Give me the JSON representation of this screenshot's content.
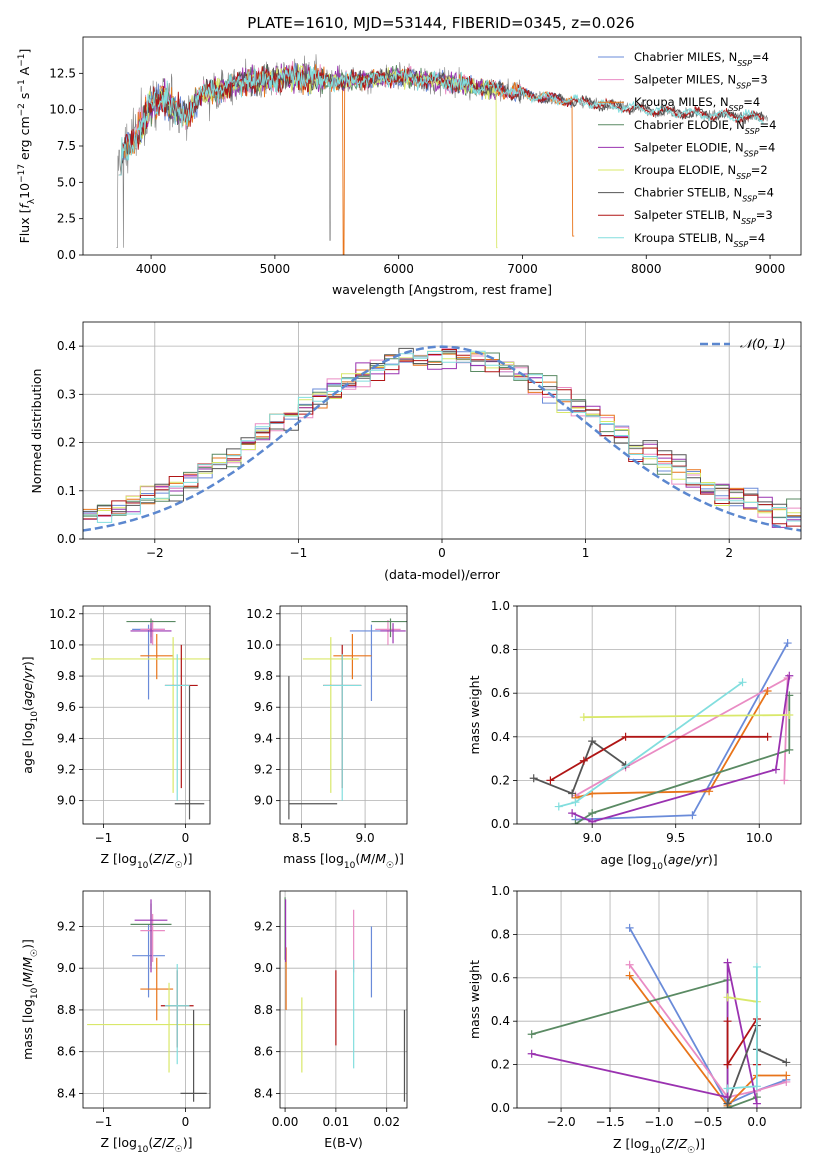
{
  "figure_title": "PLATE=1610, MJD=53144, FIBERID=0345, z=0.026",
  "colors": {
    "chabrier_miles": "#6a8bd9",
    "salpeter_miles": "#e98cc4",
    "kroupa_miles": "#e8741a",
    "chabrier_elodie": "#5a8a63",
    "salpeter_elodie": "#9a32b0",
    "kroupa_elodie": "#d9e86a",
    "chabrier_stelib": "#555555",
    "salpeter_stelib": "#b01515",
    "kroupa_stelib": "#82dede",
    "data": "#808080",
    "normal": "#5b87cf"
  },
  "chart_data": [
    {
      "id": "spectrum",
      "type": "line",
      "xlabel": "wavelength [Angstrom, rest frame]",
      "ylabel": "Flux [f_λ10^-17 erg cm^-2 s^-1 A^-1]",
      "xlim": [
        3450,
        9250
      ],
      "ylim": [
        0,
        15
      ],
      "xticks": [
        4000,
        5000,
        6000,
        7000,
        8000,
        9000
      ],
      "yticks": [
        0.0,
        2.5,
        5.0,
        7.5,
        10.0,
        12.5
      ],
      "ytick_labels": [
        "0.0",
        "2.5",
        "5.0",
        "7.5",
        "10.0",
        "12.5"
      ],
      "legend_position": "upper-right",
      "legend": [
        {
          "key": "chabrier_miles",
          "label": "Chabrier MILES, N",
          "sub": "SSP",
          "tail": "=4"
        },
        {
          "key": "salpeter_miles",
          "label": "Salpeter MILES, N",
          "sub": "SSP",
          "tail": "=3"
        },
        {
          "key": "kroupa_miles",
          "label": "Kroupa MILES, N",
          "sub": "SSP",
          "tail": "=4"
        },
        {
          "key": "chabrier_elodie",
          "label": "Chabrier ELODIE, N",
          "sub": "SSP",
          "tail": "=4"
        },
        {
          "key": "salpeter_elodie",
          "label": "Salpeter ELODIE, N",
          "sub": "SSP",
          "tail": "=4"
        },
        {
          "key": "kroupa_elodie",
          "label": "Kroupa ELODIE, N",
          "sub": "SSP",
          "tail": "=2"
        },
        {
          "key": "chabrier_stelib",
          "label": "Chabrier STELIB, N",
          "sub": "SSP",
          "tail": "=4"
        },
        {
          "key": "salpeter_stelib",
          "label": "Salpeter STELIB, N",
          "sub": "SSP",
          "tail": "=3"
        },
        {
          "key": "kroupa_stelib",
          "label": "Kroupa STELIB, N",
          "sub": "SSP",
          "tail": "=4"
        }
      ],
      "continuum": {
        "x": [
          3720,
          3800,
          3900,
          4000,
          4100,
          4200,
          4300,
          4400,
          4600,
          4800,
          5000,
          5200,
          5500,
          5800,
          6000,
          6300,
          6600,
          6800,
          7000,
          7200,
          7500,
          7800,
          8000,
          8300,
          8600,
          8900,
          9000
        ],
        "y": [
          6.5,
          7.5,
          8.6,
          10.3,
          10.8,
          10.0,
          9.6,
          11.0,
          11.5,
          12.0,
          12.1,
          12.2,
          12.0,
          12.1,
          12.3,
          12.0,
          11.6,
          11.4,
          11.1,
          10.8,
          10.5,
          10.2,
          10.0,
          9.8,
          9.6,
          9.5,
          9.4
        ]
      }
    },
    {
      "id": "residuals",
      "type": "histogram",
      "xlabel": "(data-model)/error",
      "ylabel": "Normed distribution",
      "xlim": [
        -2.5,
        2.5
      ],
      "ylim": [
        0,
        0.45
      ],
      "xticks": [
        -2,
        -1,
        0,
        1,
        2
      ],
      "yticks": [
        0.0,
        0.1,
        0.2,
        0.3,
        0.4
      ],
      "legend": {
        "label": "𝒩(0, 1)",
        "position": "upper-right"
      },
      "bins": 50
    },
    {
      "id": "age_vs_metallicity",
      "type": "errorbar",
      "xlabel": "Z [log10(Z/Z☉)]",
      "ylabel": "age [log10(age/yr)]",
      "xlim": [
        -1.25,
        0.3
      ],
      "ylim": [
        8.85,
        10.25
      ],
      "xticks": [
        -1,
        0
      ],
      "yticks": [
        9.0,
        9.2,
        9.4,
        9.6,
        9.8,
        10.0,
        10.2
      ],
      "points": [
        {
          "key": "chabrier_miles",
          "x": -0.45,
          "y": 10.1,
          "xerr": 0.2,
          "yerr": [
            0.45,
            0.03
          ]
        },
        {
          "key": "salpeter_miles",
          "x": -0.4,
          "y": 10.1,
          "xerr": 0.15,
          "yerr": [
            0.1,
            0.06
          ]
        },
        {
          "key": "kroupa_miles",
          "x": -0.35,
          "y": 9.93,
          "xerr": 0.2,
          "yerr": [
            0.15,
            0.14
          ]
        },
        {
          "key": "chabrier_elodie",
          "x": -0.42,
          "y": 10.15,
          "xerr": 0.3,
          "yerr": [
            0.1,
            0.02
          ]
        },
        {
          "key": "salpeter_elodie",
          "x": -0.42,
          "y": 10.09,
          "xerr": 0.25,
          "yerr": [
            0.08,
            0.05
          ]
        },
        {
          "key": "kroupa_elodie",
          "x": -0.15,
          "y": 9.91,
          "xerr": 1.0,
          "yerr": [
            0.86,
            0.14
          ]
        },
        {
          "key": "chabrier_stelib",
          "x": 0.05,
          "y": 8.98,
          "xerr": 0.18,
          "yerr": [
            0.1,
            0.76
          ]
        },
        {
          "key": "salpeter_stelib",
          "x": -0.05,
          "y": 9.74,
          "xerr": 0.2,
          "yerr": [
            0.66,
            0.26
          ]
        },
        {
          "key": "kroupa_stelib",
          "x": -0.1,
          "y": 9.74,
          "xerr": 0.15,
          "yerr": [
            0.74,
            0.2
          ]
        }
      ]
    },
    {
      "id": "age_vs_mass",
      "type": "errorbar",
      "xlabel": "mass [log10(M/M☉)]",
      "ylabel": "",
      "xlim": [
        8.33,
        9.33
      ],
      "ylim": [
        8.85,
        10.25
      ],
      "xticks": [
        8.5,
        9.0
      ],
      "yticks": [
        9.0,
        9.2,
        9.4,
        9.6,
        9.8,
        10.0,
        10.2
      ],
      "points": [
        {
          "key": "chabrier_miles",
          "x": 9.05,
          "y": 10.09,
          "xerr": 0.17,
          "yerr": [
            0.45,
            0.04
          ]
        },
        {
          "key": "salpeter_miles",
          "x": 9.18,
          "y": 10.1,
          "xerr": 0.1,
          "yerr": [
            0.1,
            0.06
          ]
        },
        {
          "key": "kroupa_miles",
          "x": 8.9,
          "y": 9.93,
          "xerr": 0.15,
          "yerr": [
            0.15,
            0.14
          ]
        },
        {
          "key": "chabrier_elodie",
          "x": 9.2,
          "y": 10.15,
          "xerr": 0.15,
          "yerr": [
            0.1,
            0.02
          ]
        },
        {
          "key": "salpeter_elodie",
          "x": 9.22,
          "y": 10.09,
          "xerr": 0.1,
          "yerr": [
            0.08,
            0.05
          ]
        },
        {
          "key": "kroupa_elodie",
          "x": 8.73,
          "y": 9.91,
          "xerr": 0.22,
          "yerr": [
            0.86,
            0.14
          ]
        },
        {
          "key": "chabrier_stelib",
          "x": 8.4,
          "y": 8.98,
          "xerr": [
            0.0,
            0.38
          ],
          "yerr": [
            0.1,
            0.82
          ]
        },
        {
          "key": "salpeter_stelib",
          "x": 8.82,
          "y": 9.74,
          "xerr": 0.15,
          "yerr": [
            0.66,
            0.26
          ]
        },
        {
          "key": "kroupa_stelib",
          "x": 8.82,
          "y": 9.74,
          "xerr": 0.15,
          "yerr": [
            0.74,
            0.2
          ]
        }
      ]
    },
    {
      "id": "weight_vs_age",
      "type": "line",
      "xlabel": "age [log10(age/yr)]",
      "ylabel": "mass weight",
      "xlim": [
        8.55,
        10.25
      ],
      "ylim": [
        0,
        1
      ],
      "xticks": [
        9.0,
        9.5,
        10.0
      ],
      "yticks": [
        0.0,
        0.2,
        0.4,
        0.6,
        0.8,
        1.0
      ],
      "series": [
        {
          "key": "chabrier_miles",
          "x": [
            8.9,
            9.6,
            10.17
          ],
          "y": [
            0.02,
            0.04,
            0.83
          ]
        },
        {
          "key": "salpeter_miles",
          "x": [
            8.9,
            9.2,
            10.17,
            10.15
          ],
          "y": [
            0.13,
            0.26,
            0.67,
            0.2
          ]
        },
        {
          "key": "kroupa_miles",
          "x": [
            8.9,
            9.0,
            9.7,
            10.05
          ],
          "y": [
            0.12,
            0.14,
            0.15,
            0.61
          ]
        },
        {
          "key": "chabrier_elodie",
          "x": [
            8.9,
            9.0,
            10.18,
            10.18
          ],
          "y": [
            0.0,
            0.05,
            0.34,
            0.59
          ]
        },
        {
          "key": "salpeter_elodie",
          "x": [
            8.88,
            9.0,
            10.1,
            10.18
          ],
          "y": [
            0.05,
            0.01,
            0.25,
            0.68
          ]
        },
        {
          "key": "kroupa_elodie",
          "x": [
            8.95,
            10.18
          ],
          "y": [
            0.49,
            0.5
          ]
        },
        {
          "key": "chabrier_stelib",
          "x": [
            8.65,
            8.88,
            9.0,
            9.2
          ],
          "y": [
            0.21,
            0.14,
            0.38,
            0.27
          ]
        },
        {
          "key": "salpeter_stelib",
          "x": [
            8.75,
            8.95,
            9.2,
            10.05
          ],
          "y": [
            0.2,
            0.29,
            0.4,
            0.4
          ]
        },
        {
          "key": "kroupa_stelib",
          "x": [
            8.8,
            8.9,
            9.9
          ],
          "y": [
            0.08,
            0.1,
            0.65
          ]
        }
      ]
    },
    {
      "id": "mass_vs_metallicity",
      "type": "errorbar",
      "xlabel": "Z [log10(Z/Z☉)]",
      "ylabel": "mass [log10(M/M☉)]",
      "xlim": [
        -1.25,
        0.3
      ],
      "ylim": [
        8.33,
        9.37
      ],
      "xticks": [
        -1,
        0
      ],
      "yticks": [
        8.4,
        8.6,
        8.8,
        9.0,
        9.2
      ],
      "points": [
        {
          "key": "chabrier_miles",
          "x": -0.45,
          "y": 9.06,
          "xerr": 0.2,
          "yerr": [
            0.2,
            0.15
          ]
        },
        {
          "key": "salpeter_miles",
          "x": -0.4,
          "y": 9.18,
          "xerr": 0.15,
          "yerr": [
            0.15,
            0.08
          ]
        },
        {
          "key": "kroupa_miles",
          "x": -0.35,
          "y": 8.9,
          "xerr": 0.2,
          "yerr": [
            0.15,
            0.15
          ]
        },
        {
          "key": "chabrier_elodie",
          "x": -0.42,
          "y": 9.21,
          "xerr": 0.25,
          "yerr": [
            0.2,
            0.1
          ]
        },
        {
          "key": "salpeter_elodie",
          "x": -0.42,
          "y": 9.23,
          "xerr": 0.2,
          "yerr": [
            0.25,
            0.1
          ]
        },
        {
          "key": "kroupa_elodie",
          "x": -0.2,
          "y": 8.73,
          "xerr": 1.0,
          "yerr": [
            0.23,
            0.2
          ]
        },
        {
          "key": "chabrier_stelib",
          "x": 0.1,
          "y": 8.4,
          "xerr": 0.16,
          "yerr": [
            0.04,
            0.4
          ]
        },
        {
          "key": "salpeter_stelib",
          "x": -0.1,
          "y": 8.82,
          "xerr": 0.2,
          "yerr": [
            0.2,
            0.17
          ]
        },
        {
          "key": "kroupa_stelib",
          "x": -0.1,
          "y": 8.82,
          "xerr": 0.15,
          "yerr": [
            0.28,
            0.2
          ]
        }
      ]
    },
    {
      "id": "mass_vs_ebv",
      "type": "errorbar",
      "xlabel": "E(B-V)",
      "ylabel": "",
      "xlim": [
        -0.001,
        0.024
      ],
      "ylim": [
        8.33,
        9.37
      ],
      "xticks": [
        0.0,
        0.01,
        0.02
      ],
      "xtick_labels": [
        "0.00",
        "0.01",
        "0.02"
      ],
      "yticks": [
        8.4,
        8.6,
        8.8,
        9.0,
        9.2
      ],
      "points": [
        {
          "key": "chabrier_miles",
          "x": 0.017,
          "y": 9.03,
          "yerr": [
            0.17,
            0.17
          ]
        },
        {
          "key": "salpeter_miles",
          "x": 0.0135,
          "y": 9.1,
          "yerr": [
            0.12,
            0.18
          ]
        },
        {
          "key": "kroupa_miles",
          "x": 0.0002,
          "y": 8.95,
          "yerr": [
            0.15,
            0.15
          ]
        },
        {
          "key": "chabrier_elodie",
          "x": 0.0,
          "y": 9.24,
          "yerr": [
            0.2,
            0.1
          ]
        },
        {
          "key": "salpeter_elodie",
          "x": 0.0001,
          "y": 9.18,
          "yerr": [
            0.15,
            0.15
          ]
        },
        {
          "key": "kroupa_elodie",
          "x": 0.0033,
          "y": 8.68,
          "yerr": [
            0.18,
            0.18
          ]
        },
        {
          "key": "chabrier_stelib",
          "x": 0.0235,
          "y": 8.58,
          "yerr": [
            0.22,
            0.22
          ]
        },
        {
          "key": "salpeter_stelib",
          "x": 0.01,
          "y": 8.81,
          "yerr": [
            0.18,
            0.18
          ]
        },
        {
          "key": "kroupa_stelib",
          "x": 0.0135,
          "y": 8.78,
          "yerr": [
            0.26,
            0.26
          ]
        }
      ]
    },
    {
      "id": "weight_vs_metallicity",
      "type": "line",
      "xlabel": "Z [log10(Z/Z☉)]",
      "ylabel": "mass weight",
      "xlim": [
        -2.45,
        0.45
      ],
      "ylim": [
        0,
        1
      ],
      "xticks": [
        -2.0,
        -1.5,
        -1.0,
        -0.5,
        0.0
      ],
      "xtick_labels": [
        "−2.0",
        "−1.5",
        "−1.0",
        "−0.5",
        "0.0"
      ],
      "yticks": [
        0.0,
        0.2,
        0.4,
        0.6,
        0.8,
        1.0
      ],
      "series": [
        {
          "key": "chabrier_miles",
          "x": [
            -1.3,
            -0.3,
            0.0,
            0.3
          ],
          "y": [
            0.83,
            0.02,
            0.08,
            0.13
          ]
        },
        {
          "key": "salpeter_miles",
          "x": [
            -1.3,
            -0.3,
            0.0,
            0.3
          ],
          "y": [
            0.66,
            0.05,
            0.08,
            0.12
          ]
        },
        {
          "key": "kroupa_miles",
          "x": [
            -1.3,
            -0.3,
            0.0,
            0.3
          ],
          "y": [
            0.61,
            0.01,
            0.15,
            0.15
          ]
        },
        {
          "key": "chabrier_elodie",
          "x": [
            -2.3,
            -0.3,
            -0.3,
            0.0
          ],
          "y": [
            0.34,
            0.59,
            0.0,
            0.05
          ]
        },
        {
          "key": "salpeter_elodie",
          "x": [
            -2.3,
            -0.3,
            -0.3,
            0.0
          ],
          "y": [
            0.25,
            0.05,
            0.67,
            0.02
          ]
        },
        {
          "key": "kroupa_elodie",
          "x": [
            -0.3,
            0.0
          ],
          "y": [
            0.51,
            0.49
          ]
        },
        {
          "key": "chabrier_stelib",
          "x": [
            -0.3,
            0.0,
            0.0,
            0.3
          ],
          "y": [
            0.02,
            0.38,
            0.27,
            0.21
          ]
        },
        {
          "key": "salpeter_stelib",
          "x": [
            -0.3,
            -0.3,
            0.0,
            0.0
          ],
          "y": [
            0.4,
            0.2,
            0.41,
            0.2
          ]
        },
        {
          "key": "kroupa_stelib",
          "x": [
            -0.3,
            0.0,
            0.0
          ],
          "y": [
            0.09,
            0.1,
            0.65
          ]
        }
      ]
    }
  ]
}
